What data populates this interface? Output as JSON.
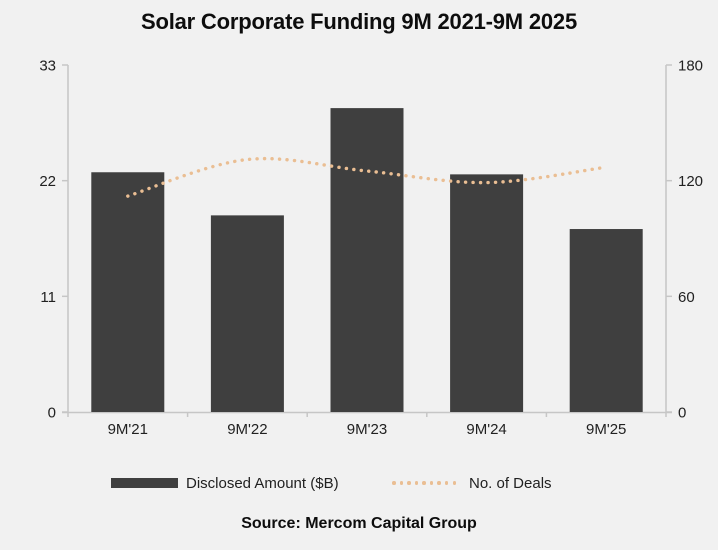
{
  "title": "Solar Corporate Funding 9M 2021-9M 2025",
  "legend": {
    "bar_label": "Disclosed Amount ($B)",
    "line_label": "No. of Deals"
  },
  "source": "Source: Mercom Capital Group",
  "colors": {
    "background": "#f1f1f1",
    "bar": "#3f3f3f",
    "line_dots": "#eabe93",
    "axis": "#c6c6c6",
    "text": "#212121"
  },
  "chart_data": {
    "type": "bar",
    "title": "Solar Corporate Funding 9M 2021-9M 2025",
    "categories": [
      "9M'21",
      "9M'22",
      "9M'23",
      "9M'24",
      "9M'25"
    ],
    "series": [
      {
        "name": "Disclosed Amount ($B)",
        "type": "bar",
        "axis": "left",
        "values": [
          22.8,
          18.7,
          28.9,
          22.6,
          17.4
        ],
        "color": "#3f3f3f"
      },
      {
        "name": "No. of Deals",
        "type": "line",
        "line_style": "dotted",
        "smooth": true,
        "axis": "right",
        "values": [
          112,
          131,
          125,
          119,
          127
        ],
        "color": "#eabe93"
      }
    ],
    "left_axis": {
      "ticks": [
        0,
        11,
        22,
        33
      ],
      "range": [
        0,
        33
      ],
      "labels": [
        "0",
        "11",
        "22",
        "33"
      ]
    },
    "right_axis": {
      "ticks": [
        0,
        60,
        120,
        180
      ],
      "range": [
        0,
        180
      ],
      "labels": [
        "0",
        "60",
        "120",
        "180"
      ]
    },
    "grid": false,
    "legend_position": "bottom",
    "source": "Source: Mercom Capital Group"
  }
}
